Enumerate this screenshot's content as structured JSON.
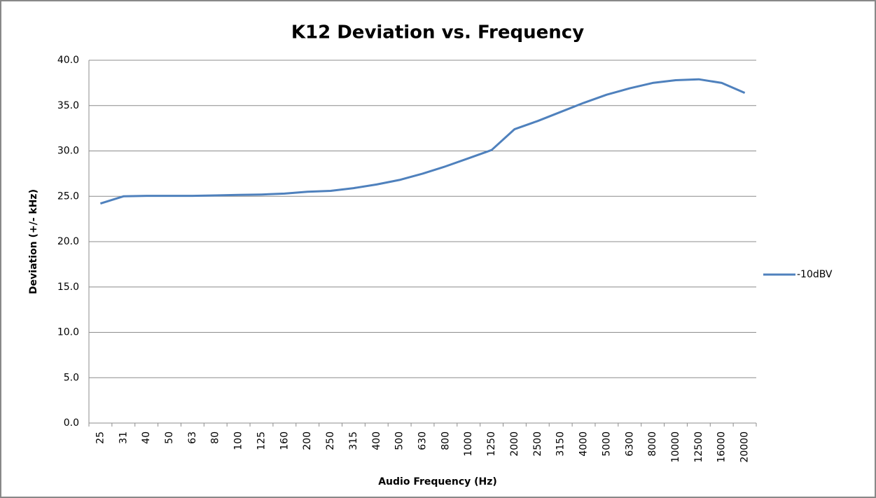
{
  "chart_data": {
    "type": "line",
    "title": "K12 Deviation vs. Frequency",
    "x_label": "Audio Frequency (Hz)",
    "y_label": "Deviation (+/- kHz)",
    "categories": [
      "25",
      "31",
      "40",
      "50",
      "63",
      "80",
      "100",
      "125",
      "160",
      "200",
      "250",
      "315",
      "400",
      "500",
      "630",
      "800",
      "1000",
      "1250",
      "2000",
      "2500",
      "3150",
      "4000",
      "5000",
      "6300",
      "8000",
      "10000",
      "12500",
      "16000",
      "20000"
    ],
    "series": [
      {
        "name": "-10dBV",
        "color": "#4f81bd",
        "values": [
          24.2,
          25.0,
          25.05,
          25.05,
          25.05,
          25.1,
          25.15,
          25.2,
          25.3,
          25.5,
          25.6,
          25.9,
          26.3,
          26.8,
          27.5,
          28.3,
          29.2,
          30.1,
          32.4,
          33.3,
          34.3,
          35.3,
          36.2,
          36.9,
          37.5,
          37.8,
          37.9,
          37.5,
          36.4
        ]
      }
    ],
    "ylim": [
      0,
      40
    ],
    "yticks": [
      {
        "value": 0,
        "label": "0.0"
      },
      {
        "value": 5,
        "label": "5.0"
      },
      {
        "value": 10,
        "label": "10.0"
      },
      {
        "value": 15,
        "label": "15.0"
      },
      {
        "value": 20,
        "label": "20.0"
      },
      {
        "value": 25,
        "label": "25.0"
      },
      {
        "value": 30,
        "label": "30.0"
      },
      {
        "value": 35,
        "label": "35.0"
      },
      {
        "value": 40,
        "label": "40.0"
      }
    ],
    "grid": true,
    "legend": "right"
  }
}
